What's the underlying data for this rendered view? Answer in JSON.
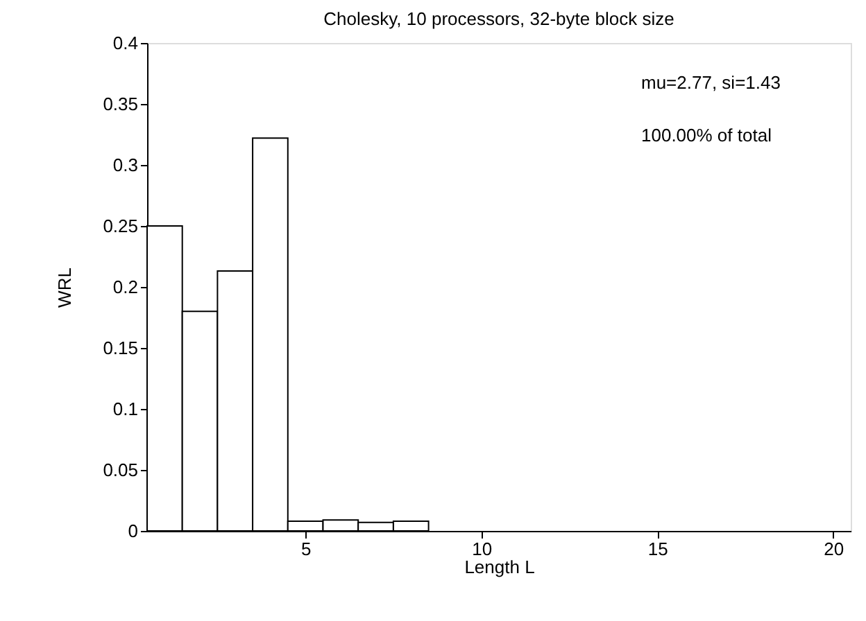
{
  "chart_data": {
    "type": "histogram",
    "title": "Cholesky, 10 processors, 32-byte block size",
    "xlabel": "Length L",
    "ylabel": "WRL",
    "bins": [
      0.5,
      1.5,
      2.5,
      3.5,
      4.5,
      5.5,
      6.5,
      7.5,
      8.5,
      9.5,
      10.5,
      11.5,
      12.5,
      13.5,
      14.5,
      15.5,
      16.5,
      17.5,
      18.5,
      19.5,
      20.5
    ],
    "values": [
      0.25,
      0.18,
      0.213,
      0.322,
      0.008,
      0.009,
      0.007,
      0.008,
      0,
      0,
      0,
      0,
      0,
      0,
      0,
      0,
      0,
      0,
      0,
      0
    ],
    "color": "#ffffff",
    "xlim": [
      0.5,
      20.5
    ],
    "xticks": [
      5,
      10,
      15,
      20
    ],
    "ylim": [
      0,
      0.4
    ],
    "yticks": [
      0,
      0.05,
      0.1,
      0.15,
      0.2,
      0.25,
      0.3,
      0.35,
      0.4
    ],
    "annotations": [
      "mu=2.77, si=1.43",
      "100.00% of total"
    ],
    "grid": false
  }
}
